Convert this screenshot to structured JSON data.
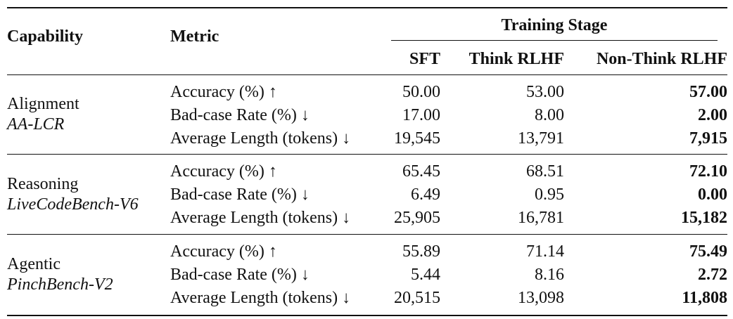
{
  "table": {
    "headers": {
      "capability": "Capability",
      "metric": "Metric",
      "training_stage": "Training Stage",
      "sft": "SFT",
      "think_rlhf": "Think RLHF",
      "non_think_rlhf": "Non-Think RLHF"
    },
    "metrics": {
      "accuracy": "Accuracy (%) ↑",
      "badcase": "Bad-case Rate (%) ↓",
      "avg_length": "Average Length (tokens) ↓"
    },
    "groups": [
      {
        "capability": "Alignment",
        "benchmark": "AA-LCR",
        "rows": [
          {
            "sft": "50.00",
            "think": "53.00",
            "nonthink": "57.00"
          },
          {
            "sft": "17.00",
            "think": "8.00",
            "nonthink": "2.00"
          },
          {
            "sft": "19,545",
            "think": "13,791",
            "nonthink": "7,915"
          }
        ]
      },
      {
        "capability": "Reasoning",
        "benchmark": "LiveCodeBench-V6",
        "rows": [
          {
            "sft": "65.45",
            "think": "68.51",
            "nonthink": "72.10"
          },
          {
            "sft": "6.49",
            "think": "0.95",
            "nonthink": "0.00"
          },
          {
            "sft": "25,905",
            "think": "16,781",
            "nonthink": "15,182"
          }
        ]
      },
      {
        "capability": "Agentic",
        "benchmark": "PinchBench-V2",
        "rows": [
          {
            "sft": "55.89",
            "think": "71.14",
            "nonthink": "75.49"
          },
          {
            "sft": "5.44",
            "think": "8.16",
            "nonthink": "2.72"
          },
          {
            "sft": "20,515",
            "think": "13,098",
            "nonthink": "11,808"
          }
        ]
      }
    ]
  }
}
